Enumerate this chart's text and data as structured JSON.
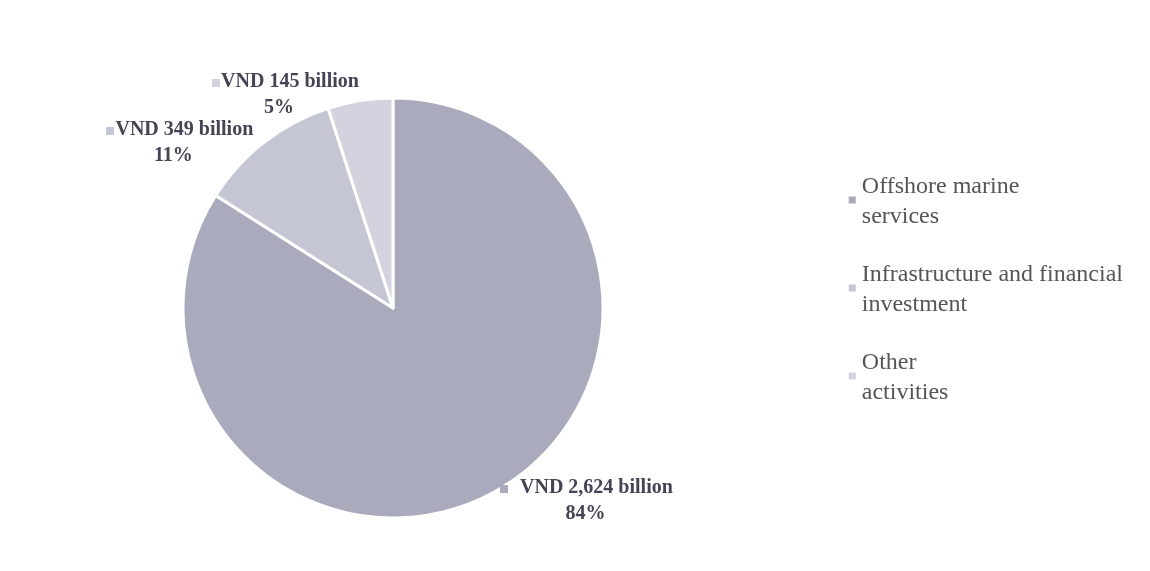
{
  "chart_data": {
    "type": "pie",
    "categories": [
      "Offshore marine services",
      "Infrastructure and financial investment",
      "Other activities"
    ],
    "values": [
      84,
      11,
      5
    ],
    "colors": [
      "#a9abbd",
      "#c4c6d4",
      "#d2d3de"
    ],
    "value_labels": [
      "VND 2,624 billion\n84%",
      "VND 349 billion\n11%",
      "VND 145 billion\n5%"
    ],
    "legend": "right"
  }
}
